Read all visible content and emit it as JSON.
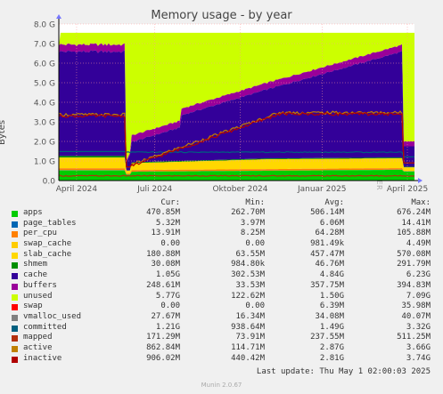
{
  "chart_data": {
    "type": "area",
    "title": "Memory usage - by year",
    "ylabel": "Bytes",
    "vertical_label": "RRDTOOL / TOBI OETIKER",
    "yticks": [
      "0.0",
      "1.0 G",
      "2.0 G",
      "3.0 G",
      "4.0 G",
      "5.0 G",
      "6.0 G",
      "7.0 G",
      "8.0 G"
    ],
    "ylim": [
      0,
      8
    ],
    "xticks": [
      "April 2024",
      "Juli 2024",
      "Oktober 2024",
      "Januar 2025",
      "April 2025"
    ],
    "grid": true,
    "stacked_series_order": [
      "apps",
      "page_tables",
      "per_cpu",
      "swap_cache",
      "slab_cache",
      "shmem",
      "cache",
      "buffers",
      "unused"
    ],
    "line_series": [
      "committed",
      "mapped",
      "active",
      "inactive"
    ],
    "colors": {
      "apps": "#00cc00",
      "page_tables": "#0066b3",
      "per_cpu": "#ff8000",
      "swap_cache": "#ffcc00",
      "slab_cache": "#ffd800",
      "shmem": "#008f00",
      "cache": "#330099",
      "buffers": "#990099",
      "unused": "#ccff00",
      "swap": "#ff0000",
      "vmalloc_used": "#808080",
      "committed": "#006080",
      "mapped": "#b3300d",
      "active": "#c08000",
      "inactive": "#b00000"
    },
    "columns": [
      "Cur:",
      "Min:",
      "Avg:",
      "Max:"
    ],
    "series": [
      {
        "name": "apps",
        "cur": "470.85M",
        "min": "262.70M",
        "avg": "506.14M",
        "max": "676.24M"
      },
      {
        "name": "page_tables",
        "cur": "5.32M",
        "min": "3.97M",
        "avg": "6.06M",
        "max": "14.41M"
      },
      {
        "name": "per_cpu",
        "cur": "13.91M",
        "min": "8.25M",
        "avg": "64.28M",
        "max": "105.88M"
      },
      {
        "name": "swap_cache",
        "cur": "0.00",
        "min": "0.00",
        "avg": "981.49k",
        "max": "4.49M"
      },
      {
        "name": "slab_cache",
        "cur": "180.88M",
        "min": "63.55M",
        "avg": "457.47M",
        "max": "570.08M"
      },
      {
        "name": "shmem",
        "cur": "30.08M",
        "min": "984.80k",
        "avg": "46.76M",
        "max": "291.79M"
      },
      {
        "name": "cache",
        "cur": "1.05G",
        "min": "302.53M",
        "avg": "4.84G",
        "max": "6.23G"
      },
      {
        "name": "buffers",
        "cur": "248.61M",
        "min": "33.53M",
        "avg": "357.75M",
        "max": "394.83M"
      },
      {
        "name": "unused",
        "cur": "5.77G",
        "min": "122.62M",
        "avg": "1.50G",
        "max": "7.09G"
      },
      {
        "name": "swap",
        "cur": "0.00",
        "min": "0.00",
        "avg": "6.39M",
        "max": "35.98M"
      },
      {
        "name": "vmalloc_used",
        "cur": "27.67M",
        "min": "16.34M",
        "avg": "34.08M",
        "max": "40.07M"
      },
      {
        "name": "committed",
        "cur": "1.21G",
        "min": "938.64M",
        "avg": "1.49G",
        "max": "3.32G"
      },
      {
        "name": "mapped",
        "cur": "171.29M",
        "min": "73.91M",
        "avg": "237.55M",
        "max": "511.25M"
      },
      {
        "name": "active",
        "cur": "862.84M",
        "min": "114.71M",
        "avg": "2.87G",
        "max": "3.66G"
      },
      {
        "name": "inactive",
        "cur": "906.02M",
        "min": "440.42M",
        "avg": "2.81G",
        "max": "3.74G"
      }
    ],
    "last_update": "Last update: Thu May  1 02:00:03 2025",
    "footer": "Munin 2.0.67"
  }
}
